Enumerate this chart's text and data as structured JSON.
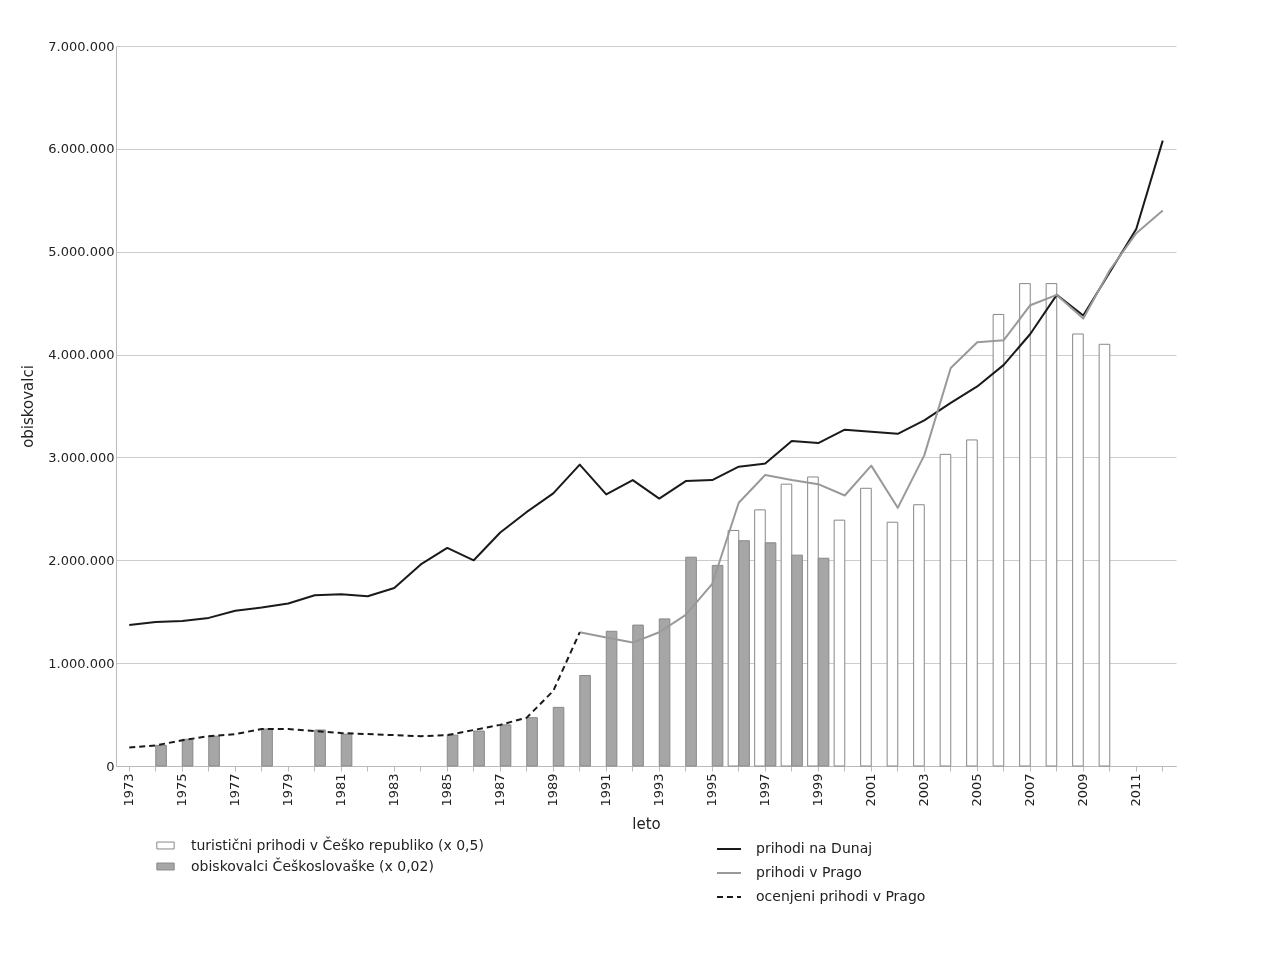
{
  "chart_data": {
    "type": "bar",
    "xlabel": "leto",
    "ylabel": "obiskovalci",
    "categories": [
      "1973",
      null,
      "1975",
      null,
      "1977",
      null,
      "1979",
      null,
      "1981",
      null,
      "1983",
      null,
      "1985",
      null,
      "1987",
      null,
      "1989",
      null,
      "1991",
      null,
      "1993",
      null,
      "1995",
      null,
      "1997",
      null,
      "1999",
      null,
      "2001",
      null,
      "2003",
      null,
      "2005",
      null,
      "2007",
      null,
      "2009",
      null,
      "2011",
      null
    ],
    "series": [
      {
        "name": "turistični prihodi v Češko republiko (x 0,5)",
        "color": "#ffffff",
        "values": [
          null,
          null,
          null,
          null,
          null,
          null,
          null,
          null,
          null,
          null,
          null,
          null,
          null,
          null,
          null,
          null,
          null,
          null,
          null,
          null,
          null,
          null,
          null,
          2290000,
          2490000,
          2740000,
          2810000,
          2390000,
          2700000,
          2370000,
          2540000,
          3030000,
          3170000,
          4390000,
          4690000,
          4690000,
          4200000,
          4100000,
          null,
          null
        ]
      },
      {
        "name": "obiskovalci Češkoslovaške (x 0,02)",
        "color": "#a6a6a6",
        "values": [
          null,
          200000,
          260000,
          290000,
          null,
          360000,
          null,
          350000,
          310000,
          null,
          null,
          null,
          300000,
          340000,
          400000,
          470000,
          570000,
          880000,
          1310000,
          1370000,
          1430000,
          2030000,
          1950000,
          2190000,
          2170000,
          2050000,
          2020000,
          null,
          null,
          null,
          null,
          null,
          null,
          null,
          null,
          null,
          null,
          null,
          null,
          null
        ]
      },
      {
        "name": "prihodi na Dunaj",
        "type": "line",
        "color": "#1a1a1a",
        "line_style": "solid",
        "values": [
          1370000,
          1400000,
          1410000,
          1440000,
          1510000,
          1540000,
          1580000,
          1660000,
          1670000,
          1650000,
          1730000,
          1960000,
          2120000,
          2000000,
          2270000,
          2470000,
          2650000,
          2930000,
          2640000,
          2780000,
          2600000,
          2770000,
          2780000,
          2910000,
          2940000,
          3160000,
          3140000,
          3270000,
          3250000,
          3230000,
          3360000,
          3530000,
          3690000,
          3900000,
          4200000,
          4580000,
          4380000,
          4800000,
          5220000,
          6080000
        ]
      },
      {
        "name": "prihodi v Prago",
        "type": "line",
        "color": "#999999",
        "line_style": "solid",
        "values": [
          null,
          null,
          null,
          null,
          null,
          null,
          null,
          null,
          null,
          null,
          null,
          null,
          null,
          null,
          null,
          null,
          null,
          1300000,
          1250000,
          1200000,
          1300000,
          1470000,
          1770000,
          2560000,
          2830000,
          2780000,
          2740000,
          2630000,
          2920000,
          2510000,
          3020000,
          3870000,
          4120000,
          4140000,
          4480000,
          4580000,
          4350000,
          4820000,
          5180000,
          5400000
        ]
      },
      {
        "name": "ocenjeni prihodi v Prago",
        "type": "line",
        "color": "#1a1a1a",
        "line_style": "dashed",
        "values": [
          180000,
          200000,
          250000,
          290000,
          310000,
          360000,
          360000,
          340000,
          320000,
          310000,
          300000,
          290000,
          300000,
          350000,
          400000,
          470000,
          730000,
          1300000,
          null,
          null,
          null,
          null,
          null,
          null,
          null,
          null,
          null,
          null,
          null,
          null,
          null,
          null,
          null,
          null,
          null,
          null,
          null,
          null,
          null,
          null
        ]
      }
    ],
    "ylim": [
      0,
      7000000
    ],
    "yticks": [
      0,
      {
        "value": 1000000,
        "label": "1.000.000"
      },
      {
        "value": 2000000,
        "label": "2.000.000"
      },
      {
        "value": 3000000,
        "label": "3.000.000"
      },
      {
        "value": 4000000,
        "label": "4.000.000"
      },
      {
        "value": 5000000,
        "label": "5.000.000"
      },
      {
        "value": 6000000,
        "label": "6.000.000"
      },
      {
        "value": 7000000,
        "label": "7.000.000"
      }
    ],
    "grid": "y",
    "legend": "bottom"
  }
}
